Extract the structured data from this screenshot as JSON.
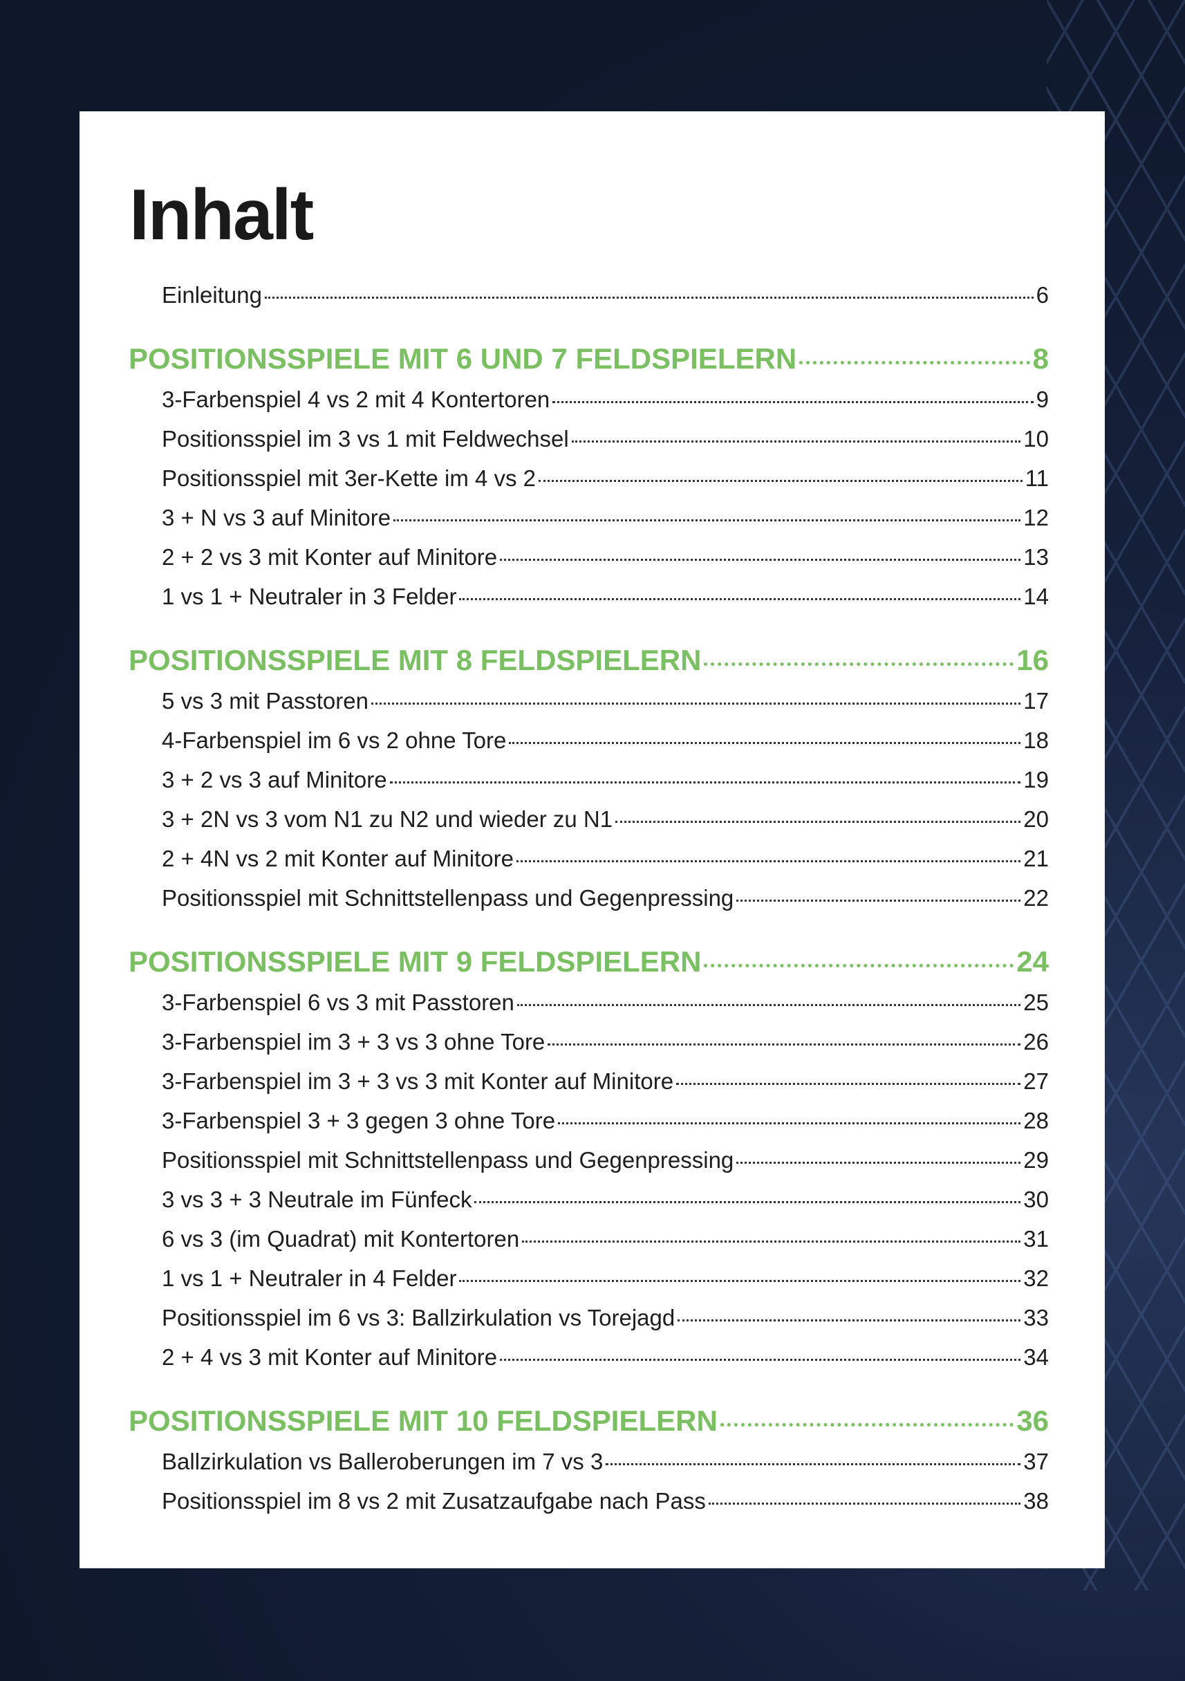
{
  "title": "Inhalt",
  "colors": {
    "accent": "#7bbf63",
    "background": "#0f182b"
  },
  "intro": {
    "label": "Einleitung",
    "page": "6"
  },
  "sections": [
    {
      "label": "POSITIONSSPIELE MIT 6 UND 7 FELDSPIELERN",
      "page": "8",
      "items": [
        {
          "label": "3-Farbenspiel 4 vs 2 mit 4 Kontertoren",
          "page": "9"
        },
        {
          "label": "Positionsspiel im 3 vs 1 mit Feldwechsel",
          "page": "10"
        },
        {
          "label": "Positionsspiel mit 3er-Kette im 4 vs 2",
          "page": "11"
        },
        {
          "label": "3 + N vs 3 auf Minitore",
          "page": "12"
        },
        {
          "label": "2 + 2 vs 3 mit Konter auf Minitore",
          "page": "13"
        },
        {
          "label": "1 vs 1 + Neutraler in 3 Felder",
          "page": "14"
        }
      ]
    },
    {
      "label": "POSITIONSSPIELE MIT 8 FELDSPIELERN",
      "page": "16",
      "items": [
        {
          "label": "5 vs 3 mit Passtoren",
          "page": "17"
        },
        {
          "label": "4-Farbenspiel im 6 vs 2 ohne Tore",
          "page": "18"
        },
        {
          "label": "3 + 2 vs 3 auf Minitore",
          "page": "19"
        },
        {
          "label": "3 + 2N vs 3 vom N1 zu N2 und wieder zu N1",
          "page": "20"
        },
        {
          "label": "2 + 4N vs 2 mit Konter auf Minitore",
          "page": "21"
        },
        {
          "label": "Positionsspiel mit Schnittstellenpass und Gegenpressing",
          "page": "22"
        }
      ]
    },
    {
      "label": "POSITIONSSPIELE MIT 9 FELDSPIELERN",
      "page": "24",
      "items": [
        {
          "label": "3-Farbenspiel 6 vs 3 mit Passtoren",
          "page": "25"
        },
        {
          "label": "3-Farbenspiel im 3 + 3 vs 3 ohne Tore",
          "page": "26"
        },
        {
          "label": "3-Farbenspiel im 3 + 3 vs 3 mit Konter auf Minitore",
          "page": "27"
        },
        {
          "label": "3-Farbenspiel 3 + 3 gegen 3 ohne Tore",
          "page": "28"
        },
        {
          "label": "Positionsspiel mit Schnittstellenpass und Gegenpressing",
          "page": "29"
        },
        {
          "label": "3 vs 3 + 3 Neutrale im Fünfeck",
          "page": "30"
        },
        {
          "label": "6 vs 3 (im Quadrat) mit Kontertoren",
          "page": "31"
        },
        {
          "label": "1 vs 1 + Neutraler in 4 Felder",
          "page": "32"
        },
        {
          "label": "Positionsspiel im 6 vs 3: Ballzirkulation vs Torejagd",
          "page": "33"
        },
        {
          "label": "2 + 4 vs 3 mit Konter auf Minitore",
          "page": "34"
        }
      ]
    },
    {
      "label": "POSITIONSSPIELE MIT 10 FELDSPIELERN",
      "page": "36",
      "items": [
        {
          "label": "Ballzirkulation vs Balleroberungen im 7 vs 3",
          "page": "37"
        },
        {
          "label": "Positionsspiel im 8 vs 2 mit Zusatzaufgabe nach Pass",
          "page": "38"
        }
      ]
    }
  ]
}
